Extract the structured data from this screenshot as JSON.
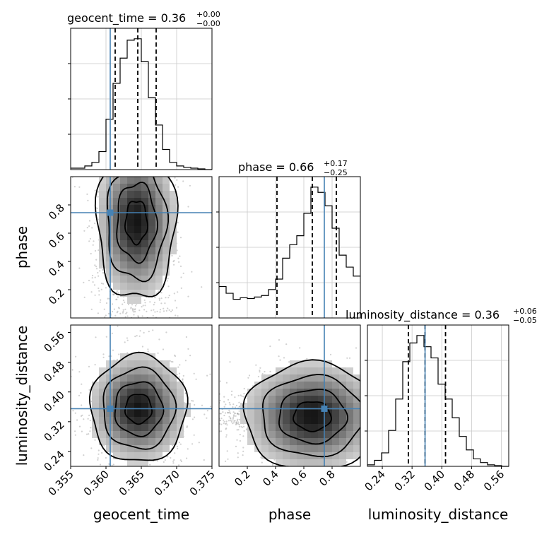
{
  "chart_data": {
    "type": "corner",
    "parameters": [
      "geocent_time",
      "phase",
      "luminosity_distance"
    ],
    "truths": {
      "geocent_time": 0.3606,
      "phase": 0.745,
      "luminosity_distance": 0.355
    },
    "colors": {
      "truth": "#4682b4",
      "contour": "#000000",
      "grid": "#c8c8c8",
      "points": "#9a9a9a"
    },
    "titles": [
      {
        "param": "geocent_time",
        "label": "geocent_time = 0.36",
        "upper": "+0.00",
        "lower": "−0.00"
      },
      {
        "param": "phase",
        "label": "phase = 0.66",
        "upper": "+0.17",
        "lower": "−0.25"
      },
      {
        "param": "luminosity_distance",
        "label": "luminosity_distance = 0.36",
        "upper": "+0.06",
        "lower": "−0.05"
      }
    ],
    "marginals": {
      "geocent_time": {
        "range": [
          0.355,
          0.375
        ],
        "ticks": [
          "0.355",
          "0.360",
          "0.365",
          "0.370",
          "0.375"
        ],
        "tick_values": [
          0.355,
          0.36,
          0.365,
          0.37,
          0.375
        ],
        "quantiles": [
          0.3613,
          0.3645,
          0.3671
        ],
        "bin_edges": [
          0.355,
          0.356,
          0.357,
          0.358,
          0.359,
          0.36,
          0.361,
          0.362,
          0.363,
          0.364,
          0.365,
          0.366,
          0.367,
          0.368,
          0.369,
          0.37,
          0.371,
          0.372,
          0.373,
          0.374,
          0.375
        ],
        "counts": [
          2,
          2,
          5,
          10,
          25,
          70,
          120,
          155,
          180,
          182,
          150,
          100,
          62,
          28,
          10,
          5,
          3,
          2,
          1,
          0
        ]
      },
      "phase": {
        "range": [
          0.0,
          1.0
        ],
        "ticks": [
          "0.2",
          "0.4",
          "0.6",
          "0.8"
        ],
        "tick_values": [
          0.2,
          0.4,
          0.6,
          0.8
        ],
        "quantiles": [
          0.41,
          0.66,
          0.83
        ],
        "bin_edges": [
          0.0,
          0.05,
          0.1,
          0.15,
          0.2,
          0.25,
          0.3,
          0.35,
          0.4,
          0.45,
          0.5,
          0.55,
          0.6,
          0.65,
          0.7,
          0.75,
          0.8,
          0.85,
          0.9,
          0.95,
          1.0
        ],
        "counts": [
          42,
          33,
          25,
          27,
          26,
          28,
          30,
          38,
          52,
          80,
          98,
          110,
          140,
          175,
          168,
          150,
          120,
          84,
          68,
          56
        ]
      },
      "luminosity_distance": {
        "range": [
          0.2,
          0.58
        ],
        "ticks": [
          "0.24",
          "0.32",
          "0.40",
          "0.48",
          "0.56"
        ],
        "tick_values": [
          0.24,
          0.32,
          0.4,
          0.48,
          0.56
        ],
        "quantiles": [
          0.31,
          0.355,
          0.41
        ],
        "bin_edges": [
          0.2,
          0.219,
          0.238,
          0.257,
          0.276,
          0.295,
          0.314,
          0.333,
          0.352,
          0.371,
          0.39,
          0.409,
          0.428,
          0.447,
          0.466,
          0.485,
          0.504,
          0.523,
          0.542,
          0.561,
          0.58
        ],
        "counts": [
          2,
          8,
          18,
          48,
          90,
          140,
          165,
          175,
          160,
          145,
          110,
          90,
          65,
          40,
          22,
          10,
          5,
          2,
          1,
          0
        ]
      }
    },
    "pairs": [
      {
        "x": "geocent_time",
        "y": "phase",
        "x_range": [
          0.355,
          0.375
        ],
        "y_range": [
          0.0,
          1.0
        ],
        "y_ticks": [
          "0.2",
          "0.4",
          "0.6",
          "0.8"
        ],
        "y_tick_values": [
          0.2,
          0.4,
          0.6,
          0.8
        ],
        "mode": {
          "x": 0.3643,
          "y": 0.68
        }
      },
      {
        "x": "geocent_time",
        "y": "luminosity_distance",
        "x_range": [
          0.355,
          0.375
        ],
        "y_range": [
          0.2,
          0.58
        ],
        "y_ticks": [
          "0.24",
          "0.32",
          "0.40",
          "0.48",
          "0.56"
        ],
        "y_tick_values": [
          0.24,
          0.32,
          0.4,
          0.48,
          0.56
        ],
        "mode": {
          "x": 0.3646,
          "y": 0.355
        }
      },
      {
        "x": "phase",
        "y": "luminosity_distance",
        "x_range": [
          0.0,
          1.0
        ],
        "y_range": [
          0.2,
          0.58
        ],
        "y_ticks": [
          "0.24",
          "0.32",
          "0.40",
          "0.48",
          "0.56"
        ],
        "y_tick_values": [
          0.24,
          0.32,
          0.4,
          0.48,
          0.56
        ],
        "mode": {
          "x": 0.66,
          "y": 0.335
        }
      }
    ],
    "axis_labels": {
      "x": [
        "geocent_time",
        "phase",
        "luminosity_distance"
      ],
      "y": [
        "phase",
        "luminosity_distance"
      ]
    }
  }
}
